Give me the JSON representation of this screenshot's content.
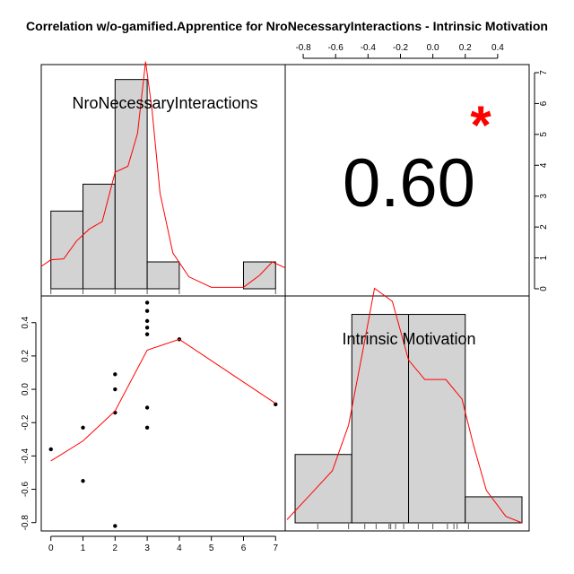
{
  "title": "Correlation w/o-gamified.Apprentice for NroNecessaryInteractions - Intrinsic Motivation",
  "chart_data": {
    "type": "scatter-matrix",
    "variables": [
      "NroNecessaryInteractions",
      "Intrinsic Motivation"
    ],
    "correlation": {
      "value": "0.60",
      "significance": "*"
    },
    "colors": {
      "bar_fill": "#d3d3d3",
      "smooth_line": "#ff0000",
      "significance": "#ff0000"
    },
    "histogram_x": {
      "variable": "NroNecessaryInteractions",
      "bins": [
        [
          0,
          1
        ],
        [
          1,
          2
        ],
        [
          2,
          3
        ],
        [
          3,
          4
        ],
        [
          4,
          5
        ],
        [
          5,
          6
        ],
        [
          6,
          7
        ]
      ],
      "counts": [
        2.6,
        3.5,
        7,
        0.9,
        0,
        0,
        0.9
      ],
      "xlim": [
        -0.3,
        7.3
      ],
      "ylim": [
        0,
        7.5
      ],
      "rug": [
        0,
        1,
        2,
        3,
        4,
        7
      ],
      "density": [
        [
          -0.3,
          0.75
        ],
        [
          0,
          0.97
        ],
        [
          0.4,
          1.0
        ],
        [
          0.8,
          1.6
        ],
        [
          1.2,
          2.0
        ],
        [
          1.6,
          2.25
        ],
        [
          2.0,
          3.9
        ],
        [
          2.4,
          4.1
        ],
        [
          2.7,
          5.2
        ],
        [
          2.95,
          7.6
        ],
        [
          3.15,
          6.0
        ],
        [
          3.4,
          3.2
        ],
        [
          3.8,
          1.2
        ],
        [
          4.3,
          0.4
        ],
        [
          5.0,
          0.05
        ],
        [
          6.0,
          0.05
        ],
        [
          6.5,
          0.45
        ],
        [
          6.9,
          0.9
        ],
        [
          7.3,
          0.7
        ]
      ]
    },
    "histogram_y": {
      "variable": "Intrinsic Motivation",
      "bins": [
        [
          -0.85,
          -0.5
        ],
        [
          -0.5,
          -0.15
        ],
        [
          -0.15,
          0.2
        ],
        [
          0.2,
          0.55
        ]
      ],
      "counts": [
        1.05,
        3.2,
        3.2,
        0.4
      ],
      "xlim": [
        -0.9,
        0.55
      ],
      "ylim": [
        0,
        3.4
      ],
      "rug": [
        -0.71,
        -0.52,
        -0.42,
        -0.35,
        -0.27,
        -0.26,
        -0.23,
        -0.18,
        -0.09,
        0.0,
        0.09,
        0.13,
        0.15,
        0.22
      ],
      "density": [
        [
          -0.9,
          0.05
        ],
        [
          -0.75,
          0.45
        ],
        [
          -0.62,
          0.8
        ],
        [
          -0.52,
          1.5
        ],
        [
          -0.42,
          2.8
        ],
        [
          -0.36,
          3.6
        ],
        [
          -0.25,
          3.4
        ],
        [
          -0.15,
          2.5
        ],
        [
          -0.05,
          2.2
        ],
        [
          0.08,
          2.2
        ],
        [
          0.18,
          1.9
        ],
        [
          0.25,
          1.2
        ],
        [
          0.33,
          0.5
        ],
        [
          0.45,
          0.1
        ],
        [
          0.55,
          0.0
        ]
      ]
    },
    "scatter": {
      "xlabel": "NroNecessaryInteractions",
      "ylabel": "Intrinsic Motivation",
      "xlim": [
        -0.3,
        7.3
      ],
      "ylim": [
        -0.85,
        0.56
      ],
      "x_ticks": [
        0,
        1,
        2,
        3,
        4,
        5,
        6,
        7
      ],
      "y_ticks": [
        -0.8,
        -0.6,
        -0.4,
        -0.2,
        0.0,
        0.2,
        0.4
      ],
      "top_ticks": [
        -0.8,
        -0.6,
        -0.4,
        -0.2,
        0.0,
        0.2,
        0.4
      ],
      "right_ticks": [
        0,
        1,
        2,
        3,
        4,
        5,
        6,
        7
      ],
      "points": [
        [
          0,
          -0.36
        ],
        [
          1,
          -0.23
        ],
        [
          1,
          -0.55
        ],
        [
          2,
          0.09
        ],
        [
          2,
          0.0
        ],
        [
          2,
          -0.14
        ],
        [
          2,
          -0.82
        ],
        [
          3,
          0.52
        ],
        [
          3,
          0.47
        ],
        [
          3,
          0.41
        ],
        [
          3,
          0.37
        ],
        [
          3,
          0.33
        ],
        [
          3,
          -0.11
        ],
        [
          3,
          -0.23
        ],
        [
          4,
          0.3
        ],
        [
          7,
          -0.09
        ]
      ],
      "smooth": [
        [
          0,
          -0.43
        ],
        [
          1,
          -0.31
        ],
        [
          2,
          -0.13
        ],
        [
          3,
          0.235
        ],
        [
          4,
          0.3
        ],
        [
          7,
          -0.085
        ]
      ]
    }
  }
}
